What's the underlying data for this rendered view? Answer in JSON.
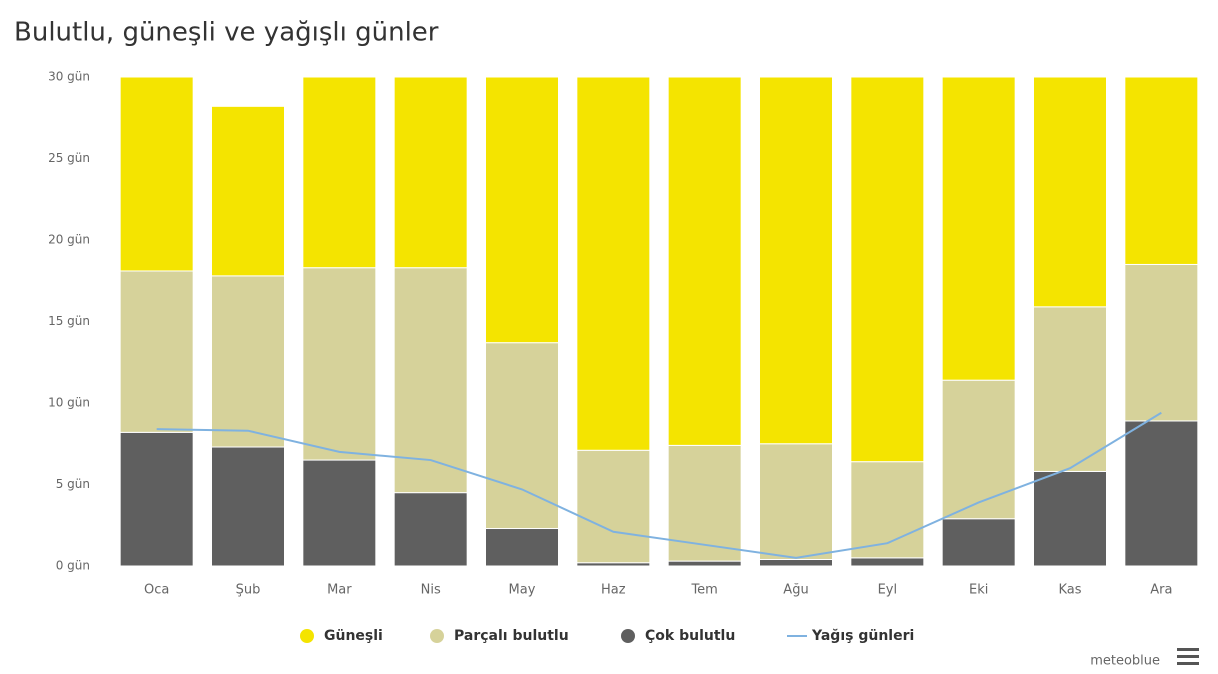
{
  "chart_data": {
    "type": "stacked-bar-line",
    "title": "Bulutlu, güneşli ve yağışlı günler",
    "categories": [
      "Oca",
      "Şub",
      "Mar",
      "Nis",
      "May",
      "Haz",
      "Tem",
      "Ağu",
      "Eyl",
      "Eki",
      "Kas",
      "Ara"
    ],
    "series": [
      {
        "name": "Çok bulutlu",
        "color": "#5f5f5f",
        "kind": "bar",
        "values": [
          8.2,
          7.3,
          6.5,
          4.5,
          2.3,
          0.2,
          0.3,
          0.4,
          0.5,
          2.9,
          5.8,
          8.9
        ]
      },
      {
        "name": "Parçalı bulutlu",
        "color": "#d6d29a",
        "kind": "bar",
        "values": [
          9.9,
          10.5,
          11.8,
          13.8,
          11.4,
          6.9,
          7.1,
          7.1,
          5.9,
          8.5,
          10.1,
          9.6
        ]
      },
      {
        "name": "Güneşli",
        "color": "#f4e400",
        "kind": "bar",
        "values": [
          11.9,
          10.4,
          11.7,
          11.7,
          16.3,
          22.9,
          22.6,
          22.5,
          23.6,
          18.6,
          14.1,
          11.5
        ]
      },
      {
        "name": "Yağış günleri",
        "color": "#7fb2e0",
        "kind": "line",
        "values": [
          8.4,
          8.3,
          7.0,
          6.5,
          4.7,
          2.1,
          1.3,
          0.5,
          1.4,
          3.9,
          6.0,
          9.4
        ]
      }
    ],
    "legend_order": [
      2,
      1,
      0,
      3
    ],
    "ylim": [
      0,
      30
    ],
    "yticks": [
      {
        "value": 0,
        "label": "0 gün"
      },
      {
        "value": 5,
        "label": "5 gün"
      },
      {
        "value": 10,
        "label": "10 gün"
      },
      {
        "value": 15,
        "label": "15 gün"
      },
      {
        "value": 20,
        "label": "20 gün"
      },
      {
        "value": 25,
        "label": "25 gün"
      },
      {
        "value": 30,
        "label": "30 gün"
      }
    ],
    "credit": "meteoblue"
  }
}
